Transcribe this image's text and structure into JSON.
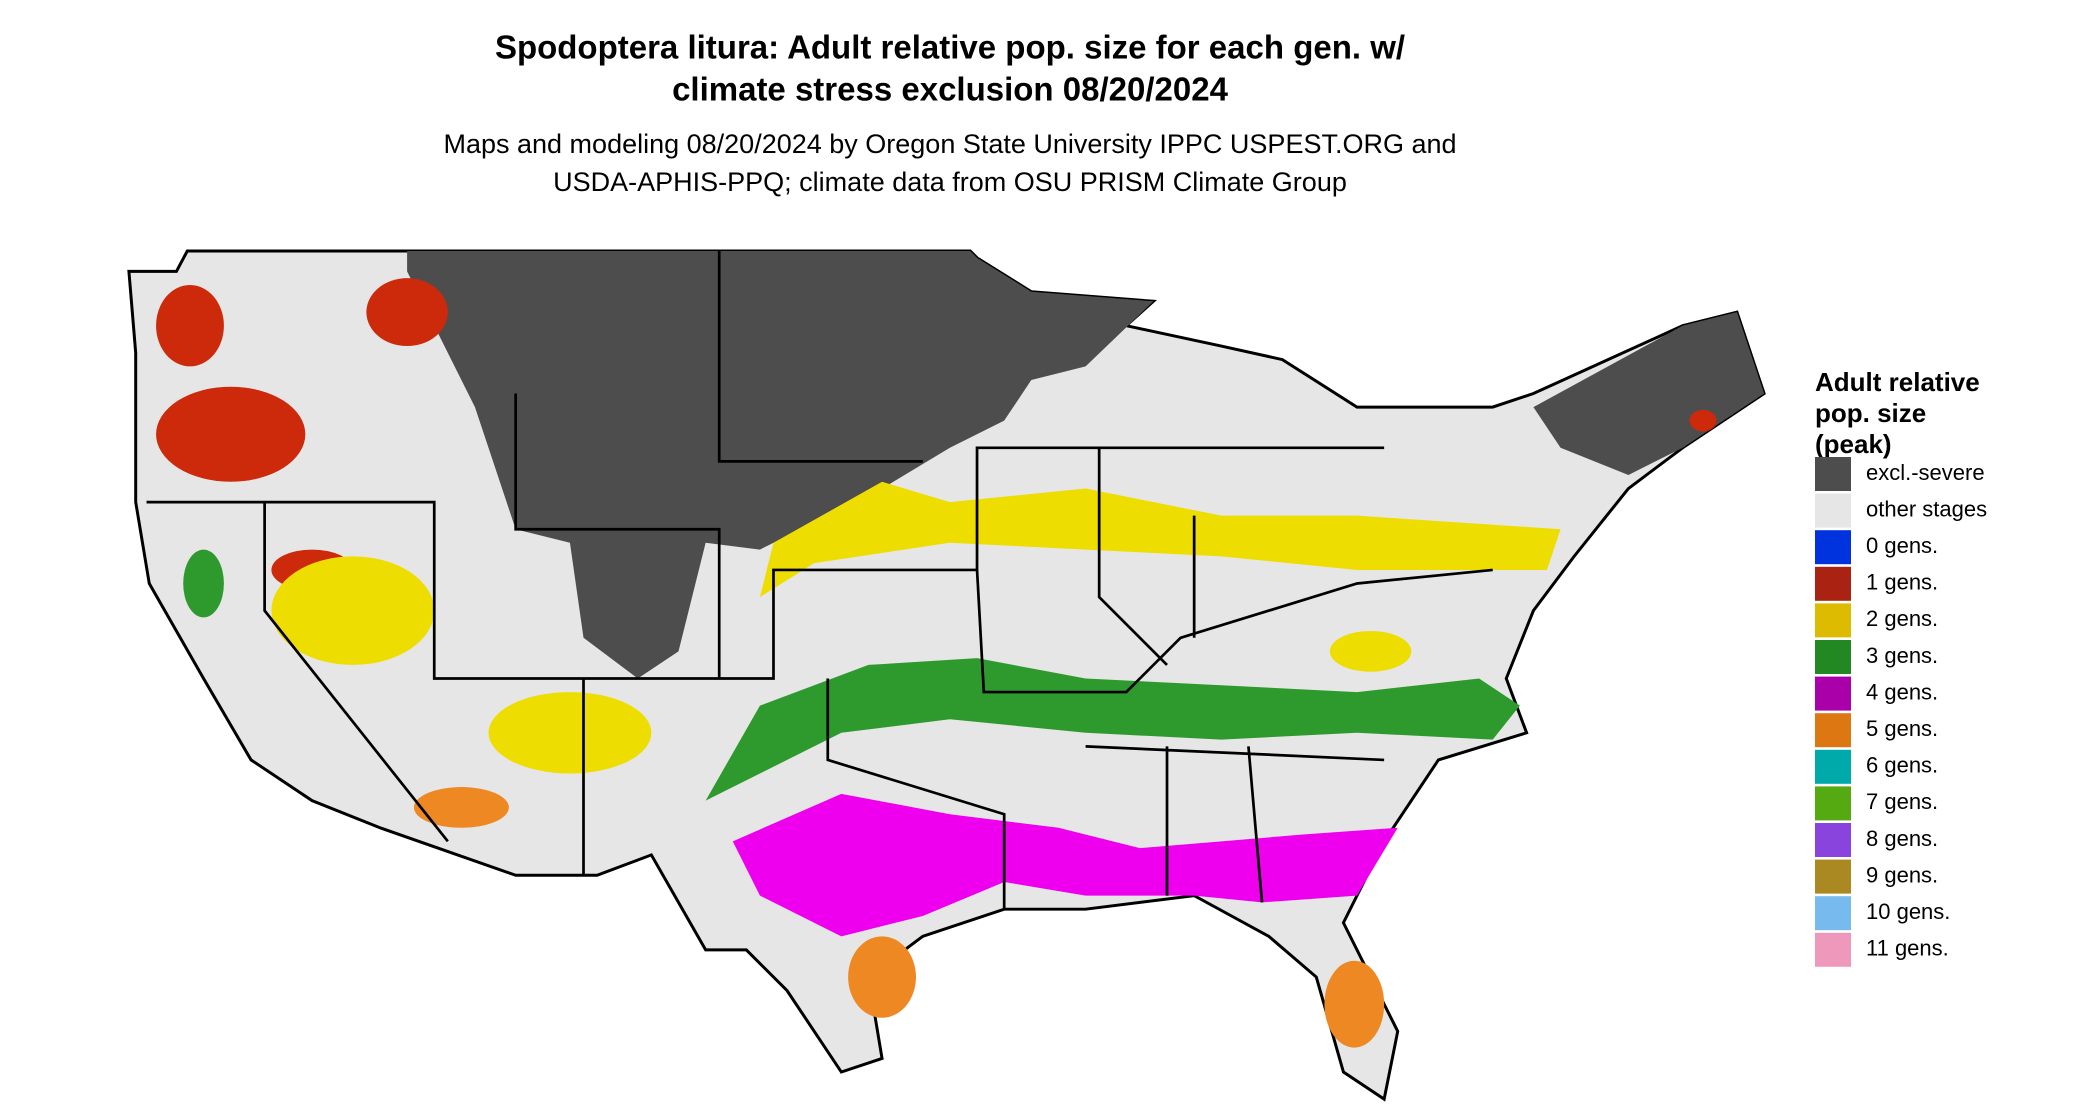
{
  "header": {
    "title_lines": [
      "Spodoptera litura: Adult relative pop. size for each gen. w/",
      "climate stress exclusion 08/20/2024"
    ],
    "subtitle_lines": [
      "Maps and modeling 08/20/2024 by Oregon State University IPPC USPEST.ORG and",
      "USDA-APHIS-PPQ; climate data from OSU PRISM Climate Group"
    ]
  },
  "legend": {
    "title_lines": [
      "Adult relative",
      "pop. size",
      "(peak)"
    ],
    "items": [
      {
        "label": "excl.-severe",
        "color": "#4d4d4d"
      },
      {
        "label": "other stages",
        "color": "#e6e6e6"
      },
      {
        "label": "0 gens.",
        "color": "#0033dd"
      },
      {
        "label": "1 gens.",
        "color": "#aa2211"
      },
      {
        "label": "2 gens.",
        "color": "#ddbb00"
      },
      {
        "label": "3 gens.",
        "color": "#228822"
      },
      {
        "label": "4 gens.",
        "color": "#aa00aa"
      },
      {
        "label": "5 gens.",
        "color": "#dd7711"
      },
      {
        "label": "6 gens.",
        "color": "#00aaaa"
      },
      {
        "label": "7 gens.",
        "color": "#55aa11"
      },
      {
        "label": "8 gens.",
        "color": "#8844dd"
      },
      {
        "label": "9 gens.",
        "color": "#aa8822"
      },
      {
        "label": "10 gens.",
        "color": "#77bbee"
      },
      {
        "label": "11 gens.",
        "color": "#ee99bb"
      }
    ]
  }
}
